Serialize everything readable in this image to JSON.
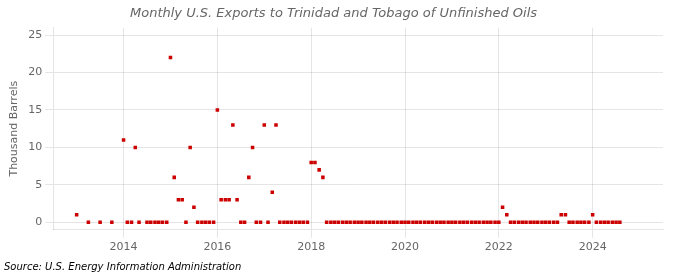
{
  "chart_data": {
    "type": "scatter",
    "title": "Monthly U.S. Exports to Trinidad and Tobago of Unfinished Oils",
    "y_label": "Thousand Barrels",
    "source": "Source: U.S. Energy Information Administration",
    "color": "#cc0000",
    "marker": "square",
    "grid": true,
    "xlim": [
      2012.5,
      2025.5
    ],
    "xticks": [
      2014,
      2016,
      2018,
      2020,
      2022,
      2024
    ],
    "ylim": [
      -1,
      26
    ],
    "yticks": [
      0,
      5,
      10,
      15,
      20,
      25
    ],
    "x": [
      2013.0,
      2013.25,
      2013.5,
      2013.75,
      2014.0,
      2014.08,
      2014.17,
      2014.25,
      2014.33,
      2014.5,
      2014.58,
      2014.67,
      2014.75,
      2014.83,
      2014.92,
      2015.0,
      2015.08,
      2015.17,
      2015.25,
      2015.33,
      2015.42,
      2015.5,
      2015.58,
      2015.67,
      2015.75,
      2015.83,
      2015.92,
      2016.0,
      2016.08,
      2016.17,
      2016.25,
      2016.33,
      2016.42,
      2016.5,
      2016.58,
      2016.67,
      2016.75,
      2016.83,
      2016.92,
      2017.0,
      2017.08,
      2017.17,
      2017.25,
      2017.33,
      2017.42,
      2017.5,
      2017.58,
      2017.67,
      2017.75,
      2017.83,
      2017.92,
      2018.0,
      2018.08,
      2018.17,
      2018.25,
      2018.33,
      2018.42,
      2018.5,
      2018.58,
      2018.67,
      2018.75,
      2018.83,
      2018.92,
      2019.0,
      2019.08,
      2019.17,
      2019.25,
      2019.33,
      2019.42,
      2019.5,
      2019.58,
      2019.67,
      2019.75,
      2019.83,
      2019.92,
      2020.0,
      2020.08,
      2020.17,
      2020.25,
      2020.33,
      2020.42,
      2020.5,
      2020.58,
      2020.67,
      2020.75,
      2020.83,
      2020.92,
      2021.0,
      2021.08,
      2021.17,
      2021.25,
      2021.33,
      2021.42,
      2021.5,
      2021.58,
      2021.67,
      2021.75,
      2021.83,
      2021.92,
      2022.0,
      2022.08,
      2022.17,
      2022.25,
      2022.33,
      2022.42,
      2022.5,
      2022.58,
      2022.67,
      2022.75,
      2022.83,
      2022.92,
      2023.0,
      2023.08,
      2023.17,
      2023.25,
      2023.33,
      2023.42,
      2023.5,
      2023.58,
      2023.67,
      2023.75,
      2023.83,
      2023.92,
      2024.0,
      2024.08,
      2024.17,
      2024.25,
      2024.33,
      2024.42,
      2024.5,
      2024.58
    ],
    "values": [
      1,
      0,
      0,
      0,
      11,
      0,
      0,
      10,
      0,
      0,
      0,
      0,
      0,
      0,
      0,
      22,
      6,
      3,
      3,
      0,
      10,
      2,
      0,
      0,
      0,
      0,
      0,
      15,
      3,
      3,
      3,
      13,
      3,
      0,
      0,
      6,
      10,
      0,
      0,
      13,
      0,
      4,
      13,
      0,
      0,
      0,
      0,
      0,
      0,
      0,
      0,
      8,
      8,
      7,
      6,
      0,
      0,
      0,
      0,
      0,
      0,
      0,
      0,
      0,
      0,
      0,
      0,
      0,
      0,
      0,
      0,
      0,
      0,
      0,
      0,
      0,
      0,
      0,
      0,
      0,
      0,
      0,
      0,
      0,
      0,
      0,
      0,
      0,
      0,
      0,
      0,
      0,
      0,
      0,
      0,
      0,
      0,
      0,
      0,
      0,
      2,
      1,
      0,
      0,
      0,
      0,
      0,
      0,
      0,
      0,
      0,
      0,
      0,
      0,
      0,
      1,
      1,
      0,
      0,
      0,
      0,
      0,
      0,
      1,
      0,
      0,
      0,
      0,
      0,
      0,
      0
    ]
  }
}
